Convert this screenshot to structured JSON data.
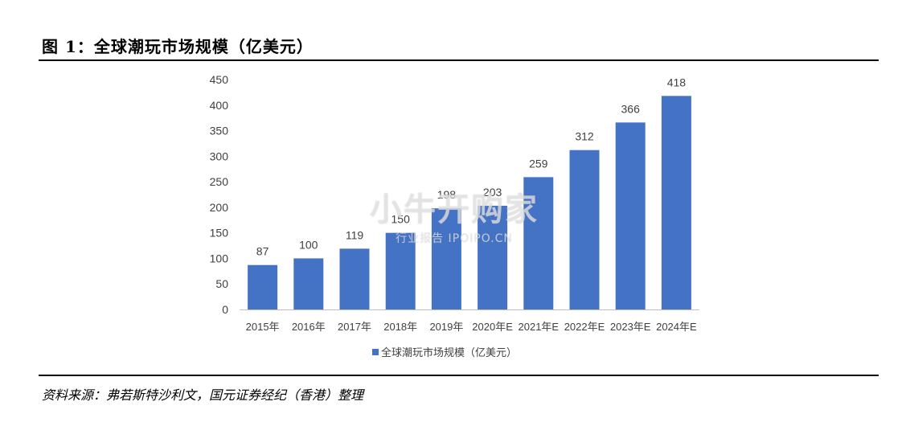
{
  "figure": {
    "title": "图 1：全球潮玩市场规模（亿美元）",
    "source": "资料来源：弗若斯特沙利文，国元证券经纪（香港）整理"
  },
  "watermark": {
    "main": "小牛开购家",
    "sub": "行业报告 IPOIPO.CN"
  },
  "chart_data": {
    "type": "bar",
    "categories": [
      "2015年",
      "2016年",
      "2017年",
      "2018年",
      "2019年",
      "2020年E",
      "2021年E",
      "2022年E",
      "2023年E",
      "2024年E"
    ],
    "series": [
      {
        "name": "全球潮玩市场规模（亿美元）",
        "values": [
          87,
          100,
          119,
          150,
          198,
          203,
          259,
          312,
          366,
          418
        ]
      }
    ],
    "data_labels": [
      "87",
      "100",
      "119",
      "150",
      "198",
      "203",
      "259",
      "312",
      "366",
      "418"
    ],
    "ylim": [
      0,
      450
    ],
    "yticks": [
      "0",
      "50",
      "100",
      "150",
      "200",
      "250",
      "300",
      "350",
      "400",
      "450"
    ],
    "xlabel": "",
    "ylabel": "",
    "grid": false,
    "legend": "bottom",
    "bar_color": "#4472C4"
  }
}
